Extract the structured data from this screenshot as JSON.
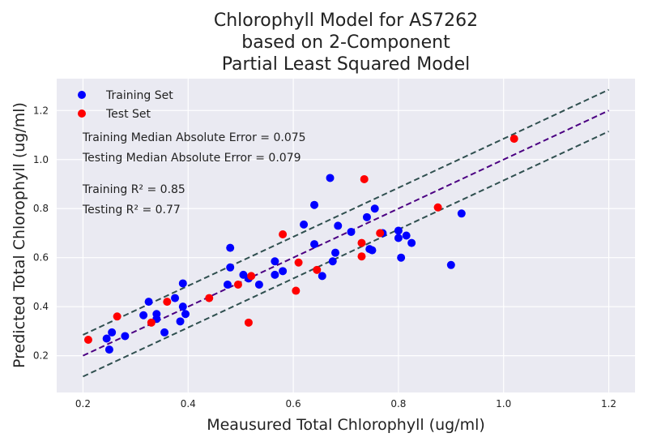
{
  "chart_data": {
    "type": "scatter",
    "title_lines": [
      "Chlorophyll Model for AS7262",
      "based on 2-Component",
      "Partial Least Squared Model"
    ],
    "xlabel": "Meausured Total Chlorophyll (ug/ml)",
    "ylabel": "Predicted Total Chlorophyll (ug/ml)",
    "xlim": [
      0.15,
      1.25
    ],
    "ylim": [
      0.05,
      1.33
    ],
    "xticks": [
      0.2,
      0.4,
      0.6,
      0.8,
      1.0,
      1.2
    ],
    "yticks": [
      0.2,
      0.4,
      0.6,
      0.8,
      1.0,
      1.2
    ],
    "xtick_labels": [
      "0.2",
      "0.4",
      "0.6",
      "0.8",
      "1.0",
      "1.2"
    ],
    "ytick_labels": [
      "0.2",
      "0.4",
      "0.6",
      "0.8",
      "1.0",
      "1.2"
    ],
    "grid": true,
    "legend_position": "top-left",
    "background": "#eaeaf2",
    "series": [
      {
        "name": "Training Set",
        "color": "#0000ff",
        "points": [
          [
            0.245,
            0.27
          ],
          [
            0.255,
            0.295
          ],
          [
            0.25,
            0.225
          ],
          [
            0.28,
            0.28
          ],
          [
            0.315,
            0.365
          ],
          [
            0.325,
            0.42
          ],
          [
            0.34,
            0.37
          ],
          [
            0.34,
            0.35
          ],
          [
            0.355,
            0.295
          ],
          [
            0.375,
            0.435
          ],
          [
            0.385,
            0.34
          ],
          [
            0.39,
            0.4
          ],
          [
            0.39,
            0.495
          ],
          [
            0.395,
            0.37
          ],
          [
            0.475,
            0.49
          ],
          [
            0.48,
            0.56
          ],
          [
            0.48,
            0.64
          ],
          [
            0.505,
            0.53
          ],
          [
            0.515,
            0.515
          ],
          [
            0.535,
            0.49
          ],
          [
            0.565,
            0.53
          ],
          [
            0.565,
            0.585
          ],
          [
            0.58,
            0.545
          ],
          [
            0.62,
            0.735
          ],
          [
            0.64,
            0.655
          ],
          [
            0.64,
            0.815
          ],
          [
            0.655,
            0.525
          ],
          [
            0.67,
            0.925
          ],
          [
            0.675,
            0.585
          ],
          [
            0.68,
            0.62
          ],
          [
            0.685,
            0.73
          ],
          [
            0.71,
            0.705
          ],
          [
            0.74,
            0.765
          ],
          [
            0.745,
            0.635
          ],
          [
            0.75,
            0.63
          ],
          [
            0.755,
            0.8
          ],
          [
            0.77,
            0.7
          ],
          [
            0.8,
            0.71
          ],
          [
            0.8,
            0.68
          ],
          [
            0.805,
            0.6
          ],
          [
            0.815,
            0.69
          ],
          [
            0.825,
            0.66
          ],
          [
            0.9,
            0.57
          ],
          [
            0.92,
            0.78
          ]
        ]
      },
      {
        "name": "Test Set",
        "color": "#ff0000",
        "points": [
          [
            0.21,
            0.265
          ],
          [
            0.265,
            0.36
          ],
          [
            0.33,
            0.335
          ],
          [
            0.36,
            0.42
          ],
          [
            0.44,
            0.435
          ],
          [
            0.495,
            0.49
          ],
          [
            0.515,
            0.335
          ],
          [
            0.52,
            0.525
          ],
          [
            0.58,
            0.695
          ],
          [
            0.605,
            0.465
          ],
          [
            0.61,
            0.58
          ],
          [
            0.645,
            0.55
          ],
          [
            0.73,
            0.605
          ],
          [
            0.73,
            0.66
          ],
          [
            0.735,
            0.92
          ],
          [
            0.765,
            0.7
          ],
          [
            0.875,
            0.805
          ],
          [
            1.02,
            1.085
          ]
        ]
      }
    ],
    "reference_lines": [
      {
        "color": "#4b0082",
        "points": [
          [
            0.2,
            0.2
          ],
          [
            1.2,
            1.2
          ]
        ]
      },
      {
        "color": "#2f4f4f",
        "points": [
          [
            0.2,
            0.285
          ],
          [
            1.2,
            1.285
          ]
        ]
      },
      {
        "color": "#2f4f4f",
        "points": [
          [
            0.2,
            0.115
          ],
          [
            1.2,
            1.115
          ]
        ]
      }
    ],
    "annotations": [
      "Training Median Absolute Error = 0.075",
      "Testing Median Absolute Error = 0.079",
      "Training R² = 0.85",
      "Testing R² = 0.77"
    ]
  }
}
